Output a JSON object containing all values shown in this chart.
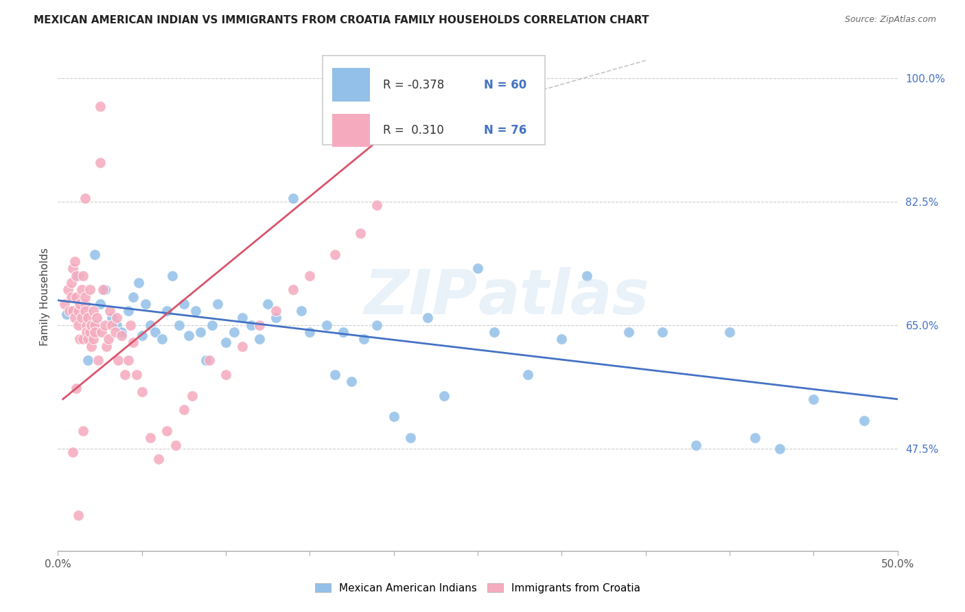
{
  "title": "MEXICAN AMERICAN INDIAN VS IMMIGRANTS FROM CROATIA FAMILY HOUSEHOLDS CORRELATION CHART",
  "source": "Source: ZipAtlas.com",
  "ylabel": "Family Households",
  "ytick_labels": [
    "47.5%",
    "65.0%",
    "82.5%",
    "100.0%"
  ],
  "ytick_values": [
    0.475,
    0.65,
    0.825,
    1.0
  ],
  "xlim": [
    0.0,
    0.5
  ],
  "ylim": [
    0.33,
    1.05
  ],
  "legend1_label": "Mexican American Indians",
  "legend2_label": "Immigrants from Croatia",
  "blue_color": "#92C0E8",
  "pink_color": "#F5AABE",
  "blue_line_color": "#4472C4",
  "pink_line_color": "#D9536A",
  "watermark": "ZIPatlas",
  "blue_R": "-0.378",
  "blue_N": "60",
  "pink_R": "0.310",
  "pink_N": "76",
  "blue_x": [
    0.005,
    0.012,
    0.018,
    0.022,
    0.025,
    0.028,
    0.032,
    0.035,
    0.038,
    0.042,
    0.045,
    0.048,
    0.05,
    0.052,
    0.055,
    0.058,
    0.062,
    0.065,
    0.068,
    0.072,
    0.075,
    0.078,
    0.082,
    0.085,
    0.088,
    0.092,
    0.095,
    0.1,
    0.105,
    0.11,
    0.115,
    0.12,
    0.125,
    0.13,
    0.14,
    0.145,
    0.15,
    0.16,
    0.165,
    0.17,
    0.175,
    0.182,
    0.19,
    0.2,
    0.21,
    0.22,
    0.23,
    0.25,
    0.26,
    0.28,
    0.3,
    0.315,
    0.34,
    0.36,
    0.38,
    0.4,
    0.415,
    0.43,
    0.45,
    0.48
  ],
  "blue_y": [
    0.665,
    0.72,
    0.6,
    0.75,
    0.68,
    0.7,
    0.66,
    0.65,
    0.64,
    0.67,
    0.69,
    0.71,
    0.635,
    0.68,
    0.65,
    0.64,
    0.63,
    0.67,
    0.72,
    0.65,
    0.68,
    0.635,
    0.67,
    0.64,
    0.6,
    0.65,
    0.68,
    0.625,
    0.64,
    0.66,
    0.65,
    0.63,
    0.68,
    0.66,
    0.83,
    0.67,
    0.64,
    0.65,
    0.58,
    0.64,
    0.57,
    0.63,
    0.65,
    0.52,
    0.49,
    0.66,
    0.55,
    0.73,
    0.64,
    0.58,
    0.63,
    0.72,
    0.64,
    0.64,
    0.48,
    0.64,
    0.49,
    0.475,
    0.545,
    0.515
  ],
  "pink_x": [
    0.004,
    0.006,
    0.007,
    0.008,
    0.008,
    0.009,
    0.009,
    0.01,
    0.01,
    0.011,
    0.011,
    0.012,
    0.012,
    0.013,
    0.013,
    0.014,
    0.014,
    0.015,
    0.015,
    0.016,
    0.016,
    0.016,
    0.017,
    0.017,
    0.018,
    0.018,
    0.019,
    0.019,
    0.02,
    0.02,
    0.021,
    0.021,
    0.022,
    0.022,
    0.023,
    0.024,
    0.025,
    0.026,
    0.027,
    0.028,
    0.029,
    0.03,
    0.031,
    0.032,
    0.034,
    0.035,
    0.036,
    0.038,
    0.04,
    0.042,
    0.043,
    0.045,
    0.047,
    0.05,
    0.055,
    0.06,
    0.065,
    0.07,
    0.075,
    0.08,
    0.09,
    0.1,
    0.11,
    0.12,
    0.13,
    0.14,
    0.15,
    0.165,
    0.18,
    0.19,
    0.025,
    0.016,
    0.009,
    0.012,
    0.015,
    0.011
  ],
  "pink_y": [
    0.68,
    0.7,
    0.67,
    0.71,
    0.69,
    0.73,
    0.67,
    0.66,
    0.74,
    0.69,
    0.72,
    0.65,
    0.67,
    0.68,
    0.63,
    0.66,
    0.7,
    0.63,
    0.72,
    0.68,
    0.67,
    0.69,
    0.65,
    0.64,
    0.63,
    0.66,
    0.64,
    0.7,
    0.65,
    0.62,
    0.63,
    0.67,
    0.65,
    0.64,
    0.66,
    0.6,
    0.96,
    0.64,
    0.7,
    0.65,
    0.62,
    0.63,
    0.67,
    0.65,
    0.64,
    0.66,
    0.6,
    0.635,
    0.58,
    0.6,
    0.65,
    0.625,
    0.58,
    0.555,
    0.49,
    0.46,
    0.5,
    0.48,
    0.53,
    0.55,
    0.6,
    0.58,
    0.62,
    0.65,
    0.67,
    0.7,
    0.72,
    0.75,
    0.78,
    0.82,
    0.88,
    0.83,
    0.47,
    0.38,
    0.5,
    0.56
  ]
}
